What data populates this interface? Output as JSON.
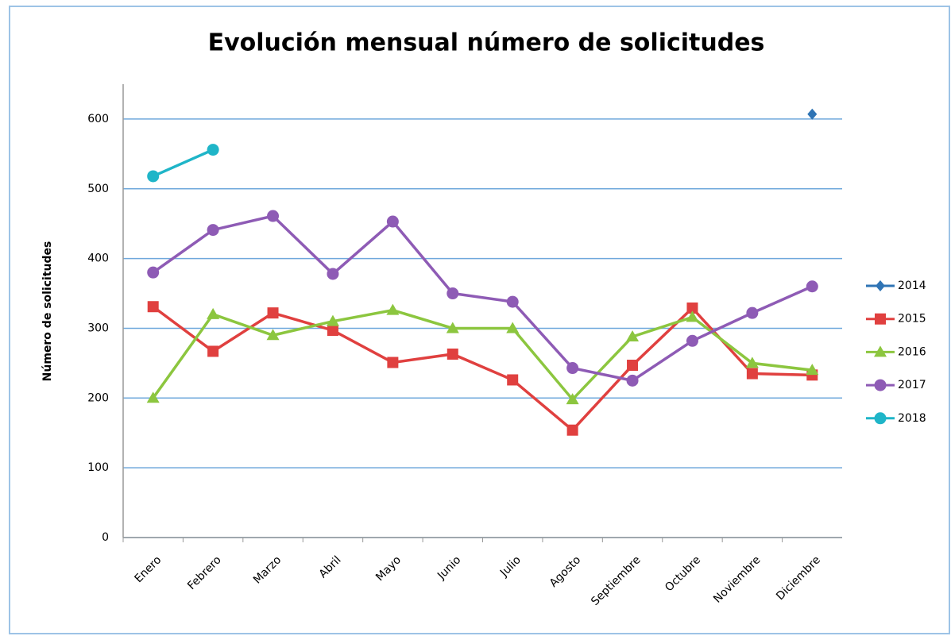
{
  "chart_data": {
    "type": "line",
    "title": "Evolución mensual número de solicitudes",
    "y_label": "Número de solicitudes",
    "categories": [
      "Enero",
      "Febrero",
      "Marzo",
      "Abril",
      "Mayo",
      "Junio",
      "Julio",
      "Agosto",
      "Septiembre",
      "Octubre",
      "Noviembre",
      "Diciembre"
    ],
    "series": [
      {
        "name": "2014",
        "color": "#2f74b5",
        "marker": "diamond",
        "values": [
          null,
          null,
          null,
          null,
          null,
          null,
          null,
          null,
          null,
          null,
          null,
          607
        ]
      },
      {
        "name": "2015",
        "color": "#e0403f",
        "marker": "square",
        "values": [
          331,
          267,
          322,
          297,
          251,
          263,
          226,
          154,
          247,
          329,
          235,
          233
        ]
      },
      {
        "name": "2016",
        "color": "#8cc63f",
        "marker": "triangle",
        "values": [
          200,
          320,
          290,
          310,
          326,
          300,
          300,
          198,
          288,
          316,
          250,
          240
        ]
      },
      {
        "name": "2017",
        "color": "#8e5bb5",
        "marker": "circle",
        "values": [
          380,
          441,
          461,
          378,
          453,
          350,
          338,
          243,
          225,
          282,
          322,
          360
        ]
      },
      {
        "name": "2018",
        "color": "#1fb5c8",
        "marker": "circle",
        "values": [
          518,
          556,
          null,
          null,
          null,
          null,
          null,
          null,
          null,
          null,
          null,
          null
        ]
      }
    ],
    "ylim": [
      0,
      650
    ],
    "yticks": [
      0,
      100,
      200,
      300,
      400,
      500,
      600
    ],
    "grid": true,
    "legend": "right"
  }
}
